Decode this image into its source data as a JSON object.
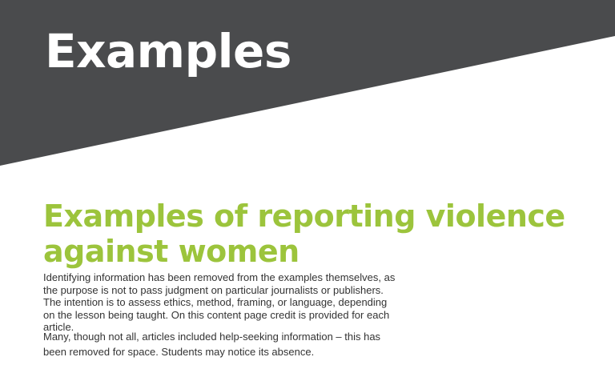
{
  "colors": {
    "banner": "#4a4b4d",
    "accent": "#9cc43c"
  },
  "banner": {
    "title": "Examples"
  },
  "content": {
    "heading": "Examples of reporting violence against women",
    "paragraphs": [
      "Identifying information has been removed from the examples themselves, as the purpose is not to pass judgment on particular journalists or publishers. The intention is to assess ethics, method, framing, or language, depending on the lesson being taught. On this content page credit is provided for each article.",
      "Many, though not all, articles included help-seeking information – this has been removed for space. Students may notice its absence."
    ]
  }
}
